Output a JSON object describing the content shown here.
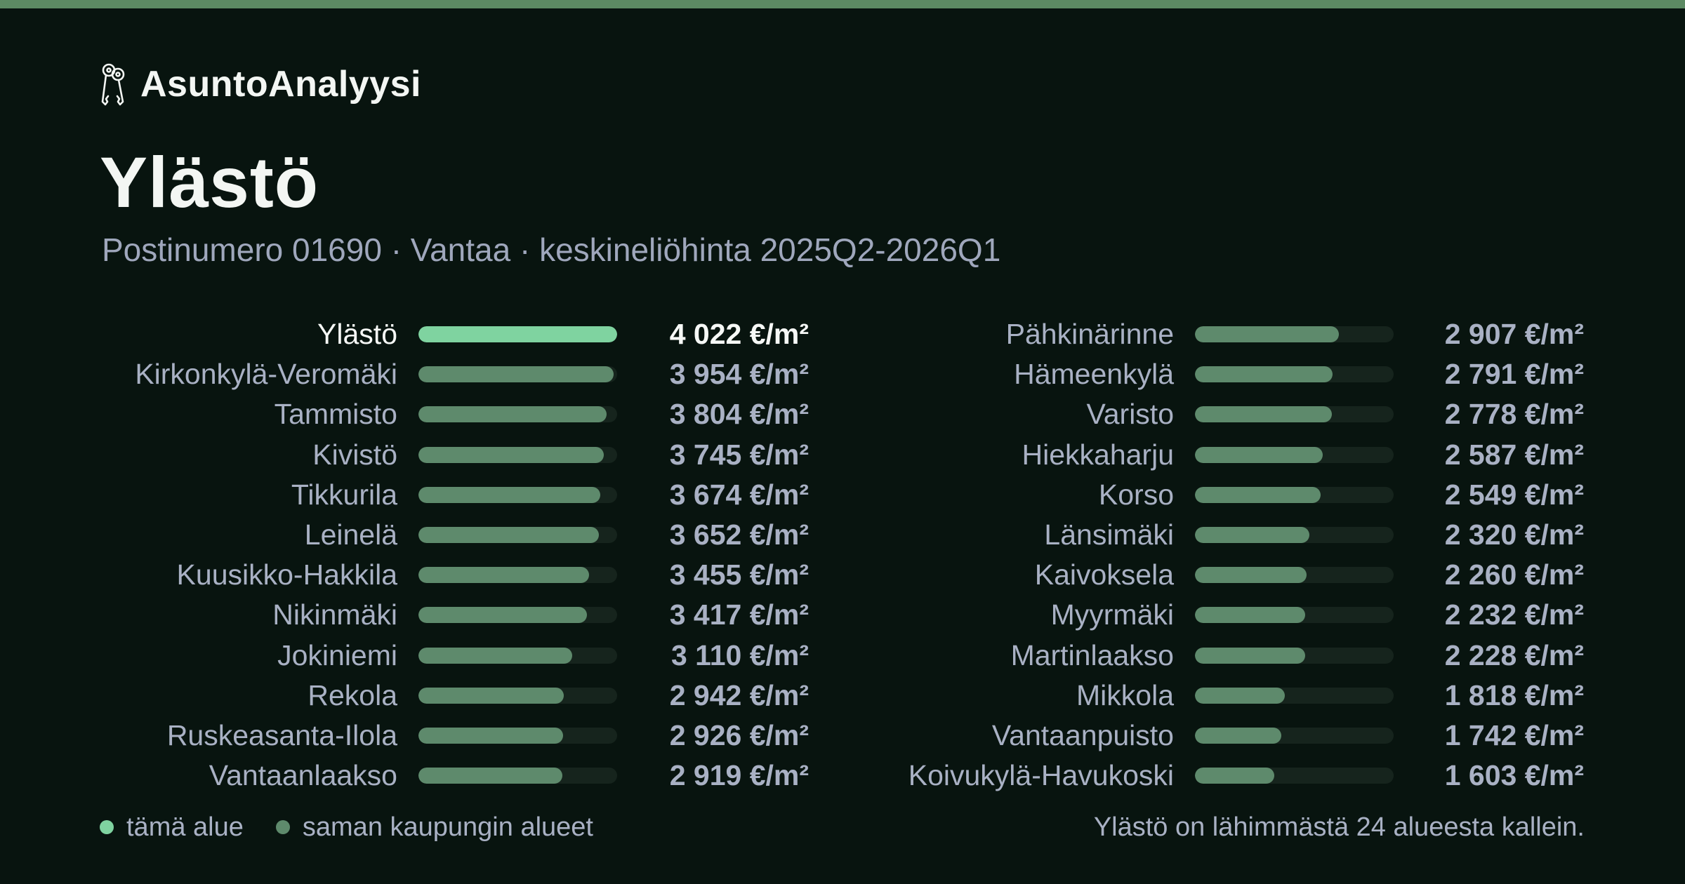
{
  "brand": {
    "name": "AsuntoAnalyysi",
    "icon": "keys-icon"
  },
  "title": "Ylästö",
  "subtitle": "Postinumero 01690 · Vantaa · keskineliöhinta 2025Q2-2026Q1",
  "legend": {
    "current": "tämä alue",
    "others": "saman kaupungin alueet"
  },
  "summary": "Ylästö on lähimmästä 24 alueesta kallein.",
  "colors": {
    "background": "#08140f",
    "accent_current": "#7fd3a0",
    "bar_others": "#5e8a6c",
    "track": "#16241d",
    "top_stripe": "#5c8a63"
  },
  "chart_data": {
    "type": "bar",
    "orientation": "horizontal",
    "unit": "€/m²",
    "xlim": [
      0,
      4022
    ],
    "highlight": "Ylästö",
    "categories": [
      "Ylästö",
      "Kirkonkylä-Veromäki",
      "Tammisto",
      "Kivistö",
      "Tikkurila",
      "Leinelä",
      "Kuusikko-Hakkila",
      "Nikinmäki",
      "Jokiniemi",
      "Rekola",
      "Ruskeasanta-Ilola",
      "Vantaanlaakso",
      "Pähkinärinne",
      "Hämeenkylä",
      "Varisto",
      "Hiekkaharju",
      "Korso",
      "Länsimäki",
      "Kaivoksela",
      "Myyrmäki",
      "Martinlaakso",
      "Mikkola",
      "Vantaanpuisto",
      "Koivukylä-Havukoski"
    ],
    "values": [
      4022,
      3954,
      3804,
      3745,
      3674,
      3652,
      3455,
      3417,
      3110,
      2942,
      2926,
      2919,
      2907,
      2791,
      2778,
      2587,
      2549,
      2320,
      2260,
      2232,
      2228,
      1818,
      1742,
      1603
    ],
    "value_labels": [
      "4 022 €/m²",
      "3 954 €/m²",
      "3 804 €/m²",
      "3 745 €/m²",
      "3 674 €/m²",
      "3 652 €/m²",
      "3 455 €/m²",
      "3 417 €/m²",
      "3 110 €/m²",
      "2 942 €/m²",
      "2 926 €/m²",
      "2 919 €/m²",
      "2 907 €/m²",
      "2 791 €/m²",
      "2 778 €/m²",
      "2 587 €/m²",
      "2 549 €/m²",
      "2 320 €/m²",
      "2 260 €/m²",
      "2 232 €/m²",
      "2 228 €/m²",
      "1 818 €/m²",
      "1 742 €/m²",
      "1 603 €/m²"
    ]
  }
}
